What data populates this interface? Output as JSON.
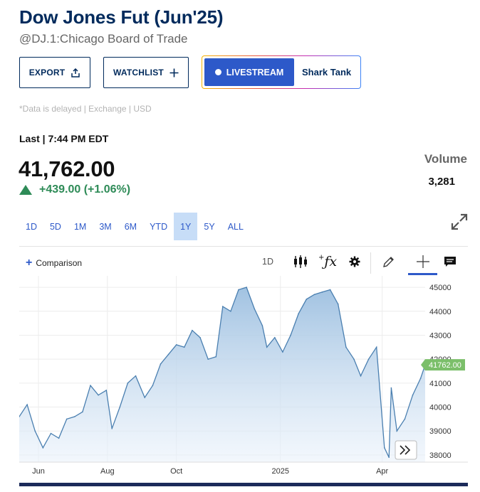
{
  "header": {
    "title": "Dow Jones Fut (Jun'25)",
    "subtitle": "@DJ.1:Chicago Board of Trade"
  },
  "actions": {
    "export_label": "EXPORT",
    "watchlist_label": "WATCHLIST",
    "livestream_label": "LIVESTREAM",
    "show_label": "Shark Tank"
  },
  "notice": "*Data is delayed | Exchange | USD",
  "quote": {
    "last_label": "Last | 7:44 PM EDT",
    "price": "41,762.00",
    "change": "+439.00 (+1.06%)",
    "volume_label": "Volume",
    "volume_value": "3,281"
  },
  "ranges": [
    "1D",
    "5D",
    "1M",
    "3M",
    "6M",
    "YTD",
    "1Y",
    "5Y",
    "ALL"
  ],
  "active_range": "1Y",
  "toolbar": {
    "comparison_label": "Comparison",
    "interval_label": "1D"
  },
  "colors": {
    "brand": "#002a5c",
    "accent": "#2d59c9",
    "positive": "#2e8b57",
    "line": "#4a7fb0",
    "badge": "#7bbf6a"
  },
  "icons": [
    "share-icon",
    "plus-icon",
    "candlestick-icon",
    "function-icon",
    "gear-icon",
    "pencil-icon",
    "crosshair-icon",
    "comment-icon",
    "expand-icon",
    "fast-forward-icon"
  ],
  "chart_data": {
    "type": "area",
    "x": [
      "2024-05-15",
      "2024-05-22",
      "2024-05-29",
      "2024-06-05",
      "2024-06-12",
      "2024-06-19",
      "2024-06-26",
      "2024-07-03",
      "2024-07-10",
      "2024-07-17",
      "2024-07-24",
      "2024-07-31",
      "2024-08-05",
      "2024-08-12",
      "2024-08-19",
      "2024-08-26",
      "2024-09-03",
      "2024-09-10",
      "2024-09-17",
      "2024-09-24",
      "2024-10-01",
      "2024-10-08",
      "2024-10-15",
      "2024-10-22",
      "2024-10-29",
      "2024-11-05",
      "2024-11-11",
      "2024-11-18",
      "2024-11-25",
      "2024-12-02",
      "2024-12-09",
      "2024-12-16",
      "2024-12-20",
      "2024-12-27",
      "2025-01-03",
      "2025-01-10",
      "2025-01-17",
      "2025-01-24",
      "2025-01-31",
      "2025-02-07",
      "2025-02-14",
      "2025-02-21",
      "2025-02-28",
      "2025-03-07",
      "2025-03-13",
      "2025-03-20",
      "2025-03-27",
      "2025-04-03",
      "2025-04-07",
      "2025-04-09",
      "2025-04-14",
      "2025-04-21",
      "2025-04-28",
      "2025-05-05",
      "2025-05-09"
    ],
    "y": [
      39600,
      40100,
      39000,
      38300,
      38900,
      38700,
      39500,
      39600,
      39800,
      40900,
      40500,
      40700,
      39100,
      40000,
      41000,
      41300,
      40400,
      40900,
      41800,
      42200,
      42600,
      42500,
      43200,
      42900,
      42000,
      42100,
      44200,
      44000,
      44900,
      45000,
      44100,
      43400,
      42500,
      42900,
      42300,
      43000,
      43900,
      44500,
      44700,
      44800,
      44900,
      44300,
      42500,
      42000,
      41300,
      42000,
      42500,
      38300,
      37900,
      40800,
      39000,
      39500,
      40500,
      41200,
      41762
    ],
    "last_value": "41762.00",
    "ylim": [
      37700,
      45300
    ],
    "yticks": [
      38000,
      39000,
      40000,
      41000,
      42000,
      43000,
      44000,
      45000
    ],
    "ytick_labels": [
      "38000",
      "39000",
      "40000",
      "41000",
      "42000",
      "43000",
      "44000",
      "45000"
    ],
    "xtick_labels": [
      {
        "label": "Jun",
        "at": "2024-06-01"
      },
      {
        "label": "Aug",
        "at": "2024-08-01"
      },
      {
        "label": "Oct",
        "at": "2024-10-01"
      },
      {
        "label": "2025",
        "at": "2025-01-01"
      },
      {
        "label": "Apr",
        "at": "2025-04-01"
      }
    ],
    "grid": true,
    "legend": "none"
  }
}
